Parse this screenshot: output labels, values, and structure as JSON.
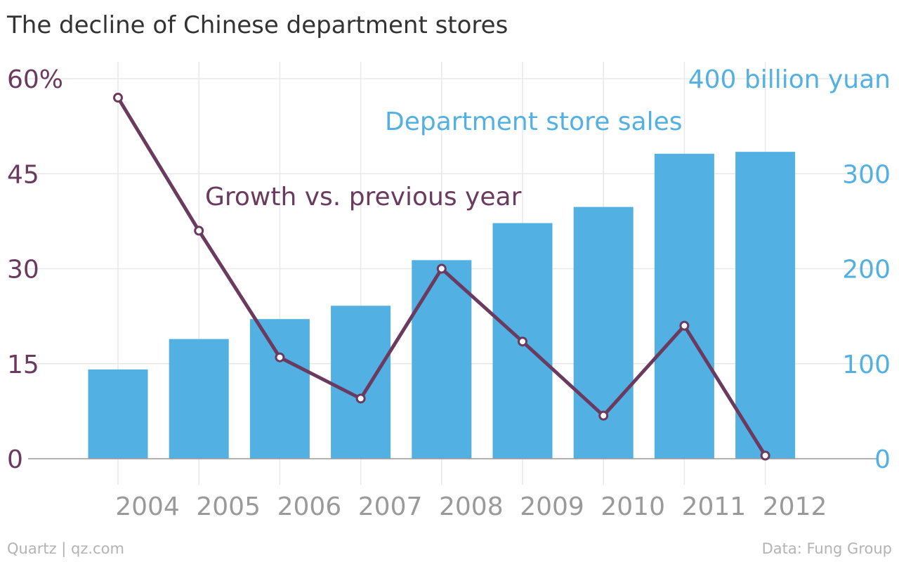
{
  "title": "The decline of Chinese department stores",
  "footer": {
    "left": "Quartz | qz.com",
    "right": "Data: Fung Group"
  },
  "colors": {
    "bars": "#52b0e3",
    "line": "#6b3a5f",
    "left_axis": "#6b3a5f",
    "right_axis": "#52b0e3",
    "grid": "#e8e8e8",
    "axis_line": "#999999",
    "year_labels": "#9a9a9a"
  },
  "chart_data": {
    "type": "bar",
    "title": "The decline of Chinese department stores",
    "categories": [
      "2004",
      "2005",
      "2006",
      "2007",
      "2008",
      "2009",
      "2010",
      "2011",
      "2012"
    ],
    "series": [
      {
        "name": "Department store sales",
        "chart_type": "bar",
        "axis": "right",
        "values": [
          94,
          126,
          147,
          161,
          209,
          248,
          265,
          321,
          323
        ]
      },
      {
        "name": "Growth vs. previous year",
        "chart_type": "line",
        "axis": "left",
        "values": [
          57,
          36,
          16,
          9.5,
          30,
          18.5,
          6.8,
          21,
          0.5
        ]
      }
    ],
    "left_axis": {
      "ylim": [
        0,
        60
      ],
      "ticks": [
        0,
        15,
        30,
        45,
        60
      ],
      "tick_labels": [
        "0",
        "15",
        "30",
        "45",
        "60%"
      ]
    },
    "right_axis": {
      "ylim": [
        0,
        400
      ],
      "ticks": [
        0,
        100,
        200,
        300,
        400
      ],
      "tick_labels": [
        "0",
        "100",
        "200",
        "300",
        "400 billion yuan"
      ]
    },
    "grid": true,
    "annotations": [
      "Department store sales",
      "Growth vs. previous year"
    ]
  }
}
